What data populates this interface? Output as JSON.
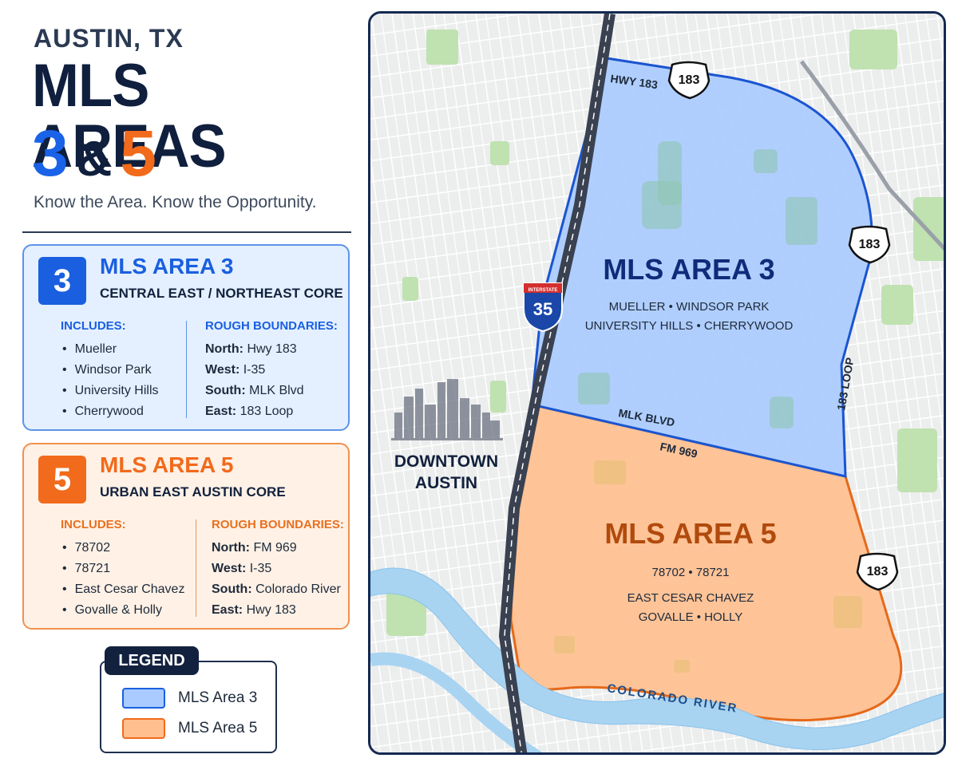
{
  "header": {
    "eyebrow": "AUSTIN, TX",
    "title": "MLS AREAS",
    "num_a": "3",
    "amp": "&",
    "num_b": "5",
    "tagline": "Know the Area. Know the Opportunity."
  },
  "area3": {
    "badge": "3",
    "title": "MLS AREA 3",
    "subtitle": "CENTRAL EAST / NORTHEAST CORE",
    "includes_head": "INCLUDES:",
    "includes": [
      "Mueller",
      "Windsor Park",
      "University Hills",
      "Cherrywood"
    ],
    "boundaries_head": "ROUGH BOUNDARIES:",
    "boundaries": [
      {
        "dir": "North:",
        "val": "Hwy 183"
      },
      {
        "dir": "West:",
        "val": "I-35"
      },
      {
        "dir": "South:",
        "val": "MLK Blvd"
      },
      {
        "dir": "East:",
        "val": "183 Loop"
      }
    ],
    "color": "#1a5fe0"
  },
  "area5": {
    "badge": "5",
    "title": "MLS AREA 5",
    "subtitle": "URBAN EAST AUSTIN CORE",
    "includes_head": "INCLUDES:",
    "includes": [
      "78702",
      "78721",
      "East Cesar Chavez",
      "Govalle & Holly"
    ],
    "boundaries_head": "ROUGH BOUNDARIES:",
    "boundaries": [
      {
        "dir": "North:",
        "val": "FM 969"
      },
      {
        "dir": "West:",
        "val": "I-35"
      },
      {
        "dir": "South:",
        "val": "Colorado River"
      },
      {
        "dir": "East:",
        "val": "Hwy 183"
      }
    ],
    "color": "#f26a1b"
  },
  "legend": {
    "title": "LEGEND",
    "items": [
      {
        "label": "MLS Area 3",
        "color": "#a9cbff"
      },
      {
        "label": "MLS Area 5",
        "color": "#ffbf8f"
      }
    ]
  },
  "map": {
    "area3_label": "MLS AREA 3",
    "area3_line1": "MUELLER • WINDSOR PARK",
    "area3_line2": "UNIVERSITY HILLS • CHERRYWOOD",
    "area5_label": "MLS AREA 5",
    "area5_line1": "78702 • 78721",
    "area5_line2": "EAST CESAR CHAVEZ",
    "area5_line3": "GOVALLE • HOLLY",
    "downtown_line1": "DOWNTOWN",
    "downtown_line2": "AUSTIN",
    "hwy183_label": "HWY 183",
    "shield_183": "183",
    "interstate_word": "INTERSTATE",
    "interstate_num": "35",
    "mlk_label": "MLK BLVD",
    "fm969_label": "FM 969",
    "loop_label": "183 LOOP",
    "river_label": "COLORADO RIVER",
    "icons": [
      "interstate-35-shield-icon",
      "us-183-shield-icon",
      "skyline-icon"
    ]
  }
}
